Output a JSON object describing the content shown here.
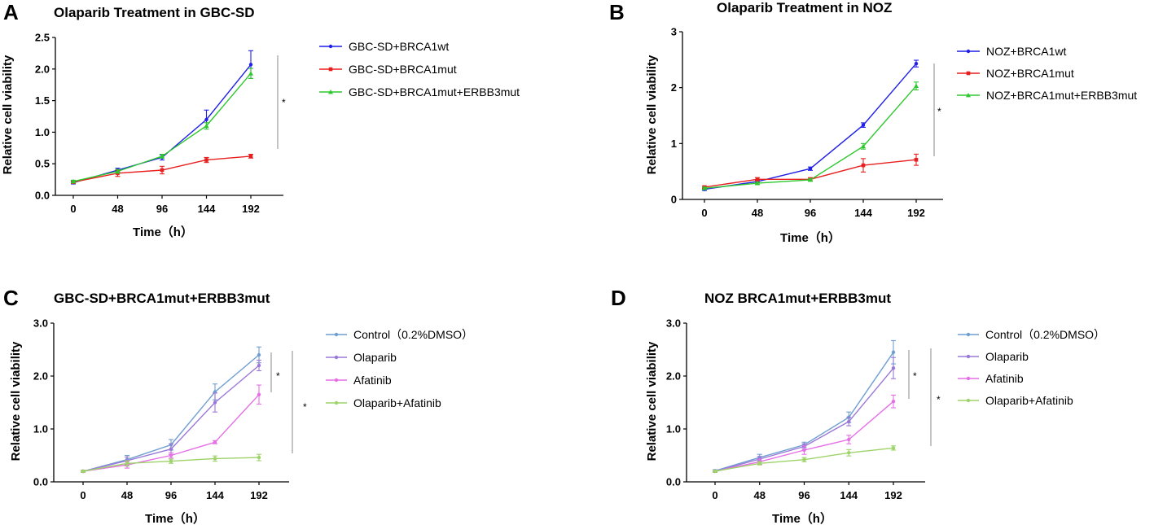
{
  "chart_data": [
    {
      "panel": "A",
      "type": "line",
      "title": "Olaparib Treatment in GBC-SD",
      "xlabel": "Time（h）",
      "ylabel": "Relative cell viability",
      "x": [
        0,
        48,
        96,
        144,
        192
      ],
      "xticks": [
        "0",
        "48",
        "96",
        "144",
        "192"
      ],
      "yticks": [
        "0.0",
        "0.5",
        "1.0",
        "1.5",
        "2.0",
        "2.5"
      ],
      "ylim": [
        0,
        2.5
      ],
      "series": [
        {
          "name": "GBC-SD+BRCA1wt",
          "color": "#1f1fe8",
          "marker": "circle",
          "values": [
            0.2,
            0.4,
            0.6,
            1.2,
            2.07
          ],
          "errors": [
            0.02,
            0.03,
            0.04,
            0.15,
            0.22
          ]
        },
        {
          "name": "GBC-SD+BRCA1mut",
          "color": "#e81f1f",
          "marker": "square",
          "values": [
            0.21,
            0.35,
            0.4,
            0.56,
            0.62
          ],
          "errors": [
            0.02,
            0.05,
            0.06,
            0.04,
            0.03
          ]
        },
        {
          "name": "GBC-SD+BRCA1mut+ERBB3mut",
          "color": "#2ec82e",
          "marker": "triangle",
          "values": [
            0.22,
            0.38,
            0.62,
            1.1,
            1.93
          ],
          "errors": [
            0.02,
            0.03,
            0.03,
            0.05,
            0.08
          ]
        }
      ],
      "significance": [
        {
          "label": "*"
        }
      ]
    },
    {
      "panel": "B",
      "type": "line",
      "title": "Olaparib Treatment in NOZ",
      "xlabel": "Time（h）",
      "ylabel": "Relative cell viability",
      "x": [
        0,
        48,
        96,
        144,
        192
      ],
      "xticks": [
        "0",
        "48",
        "96",
        "144",
        "192"
      ],
      "yticks": [
        "0",
        "1",
        "2",
        "3"
      ],
      "ylim": [
        0,
        3
      ],
      "series": [
        {
          "name": "NOZ+BRCA1wt",
          "color": "#1f1fe8",
          "marker": "circle",
          "values": [
            0.18,
            0.32,
            0.55,
            1.33,
            2.43
          ],
          "errors": [
            0.02,
            0.02,
            0.03,
            0.04,
            0.06
          ]
        },
        {
          "name": "NOZ+BRCA1mut",
          "color": "#e81f1f",
          "marker": "square",
          "values": [
            0.22,
            0.36,
            0.36,
            0.61,
            0.71
          ],
          "errors": [
            0.02,
            0.03,
            0.03,
            0.12,
            0.1
          ]
        },
        {
          "name": "NOZ+BRCA1mut+ERBB3mut",
          "color": "#2ec82e",
          "marker": "triangle",
          "values": [
            0.2,
            0.29,
            0.35,
            0.95,
            2.03
          ],
          "errors": [
            0.02,
            0.02,
            0.02,
            0.05,
            0.07
          ]
        }
      ],
      "significance": [
        {
          "label": "*"
        }
      ]
    },
    {
      "panel": "C",
      "type": "line",
      "title": "GBC-SD+BRCA1mut+ERBB3mut",
      "xlabel": "Time（h）",
      "ylabel": "Relative cell viability",
      "x": [
        0,
        48,
        96,
        144,
        192
      ],
      "xticks": [
        "0",
        "48",
        "96",
        "144",
        "192"
      ],
      "yticks": [
        "0.0",
        "1.0",
        "2.0",
        "3.0"
      ],
      "ylim": [
        0,
        3
      ],
      "series": [
        {
          "name": "Control（0.2%DMSO）",
          "color": "#6f9fd0",
          "marker": "circle",
          "values": [
            0.2,
            0.42,
            0.7,
            1.7,
            2.4
          ],
          "errors": [
            0.02,
            0.08,
            0.1,
            0.15,
            0.15
          ]
        },
        {
          "name": "Olaparib",
          "color": "#9a78d8",
          "marker": "circle",
          "values": [
            0.2,
            0.4,
            0.62,
            1.5,
            2.2
          ],
          "errors": [
            0.02,
            0.07,
            0.1,
            0.18,
            0.1
          ]
        },
        {
          "name": "Afatinib",
          "color": "#e66ee6",
          "marker": "circle",
          "values": [
            0.2,
            0.32,
            0.5,
            0.75,
            1.65
          ],
          "errors": [
            0.02,
            0.06,
            0.05,
            0.03,
            0.18
          ]
        },
        {
          "name": "Olaparib+Afatinib",
          "color": "#9ed36a",
          "marker": "circle",
          "values": [
            0.2,
            0.35,
            0.39,
            0.44,
            0.46
          ],
          "errors": [
            0.02,
            0.05,
            0.04,
            0.05,
            0.06
          ]
        }
      ],
      "significance": [
        {
          "label": "*"
        },
        {
          "label": "*"
        }
      ]
    },
    {
      "panel": "D",
      "type": "line",
      "title": "NOZ BRCA1mut+ERBB3mut",
      "xlabel": "Time（h）",
      "ylabel": "Relative cell viability",
      "x": [
        0,
        48,
        96,
        144,
        192
      ],
      "xticks": [
        "0",
        "48",
        "96",
        "144",
        "192"
      ],
      "yticks": [
        "0.0",
        "1.0",
        "2.0",
        "3.0"
      ],
      "ylim": [
        0,
        3
      ],
      "series": [
        {
          "name": "Control（0.2%DMSO）",
          "color": "#6f9fd0",
          "marker": "circle",
          "values": [
            0.21,
            0.46,
            0.7,
            1.22,
            2.45
          ],
          "errors": [
            0.02,
            0.06,
            0.05,
            0.1,
            0.22
          ]
        },
        {
          "name": "Olaparib",
          "color": "#9a78d8",
          "marker": "circle",
          "values": [
            0.2,
            0.43,
            0.67,
            1.14,
            2.15
          ],
          "errors": [
            0.02,
            0.05,
            0.05,
            0.08,
            0.2
          ]
        },
        {
          "name": "Afatinib",
          "color": "#e66ee6",
          "marker": "circle",
          "values": [
            0.2,
            0.38,
            0.6,
            0.8,
            1.52
          ],
          "errors": [
            0.02,
            0.05,
            0.08,
            0.08,
            0.12
          ]
        },
        {
          "name": "Olaparib+Afatinib",
          "color": "#9ed36a",
          "marker": "circle",
          "values": [
            0.2,
            0.35,
            0.42,
            0.55,
            0.64
          ],
          "errors": [
            0.02,
            0.03,
            0.04,
            0.06,
            0.04
          ]
        }
      ],
      "significance": [
        {
          "label": "*"
        },
        {
          "label": "*"
        }
      ]
    }
  ]
}
